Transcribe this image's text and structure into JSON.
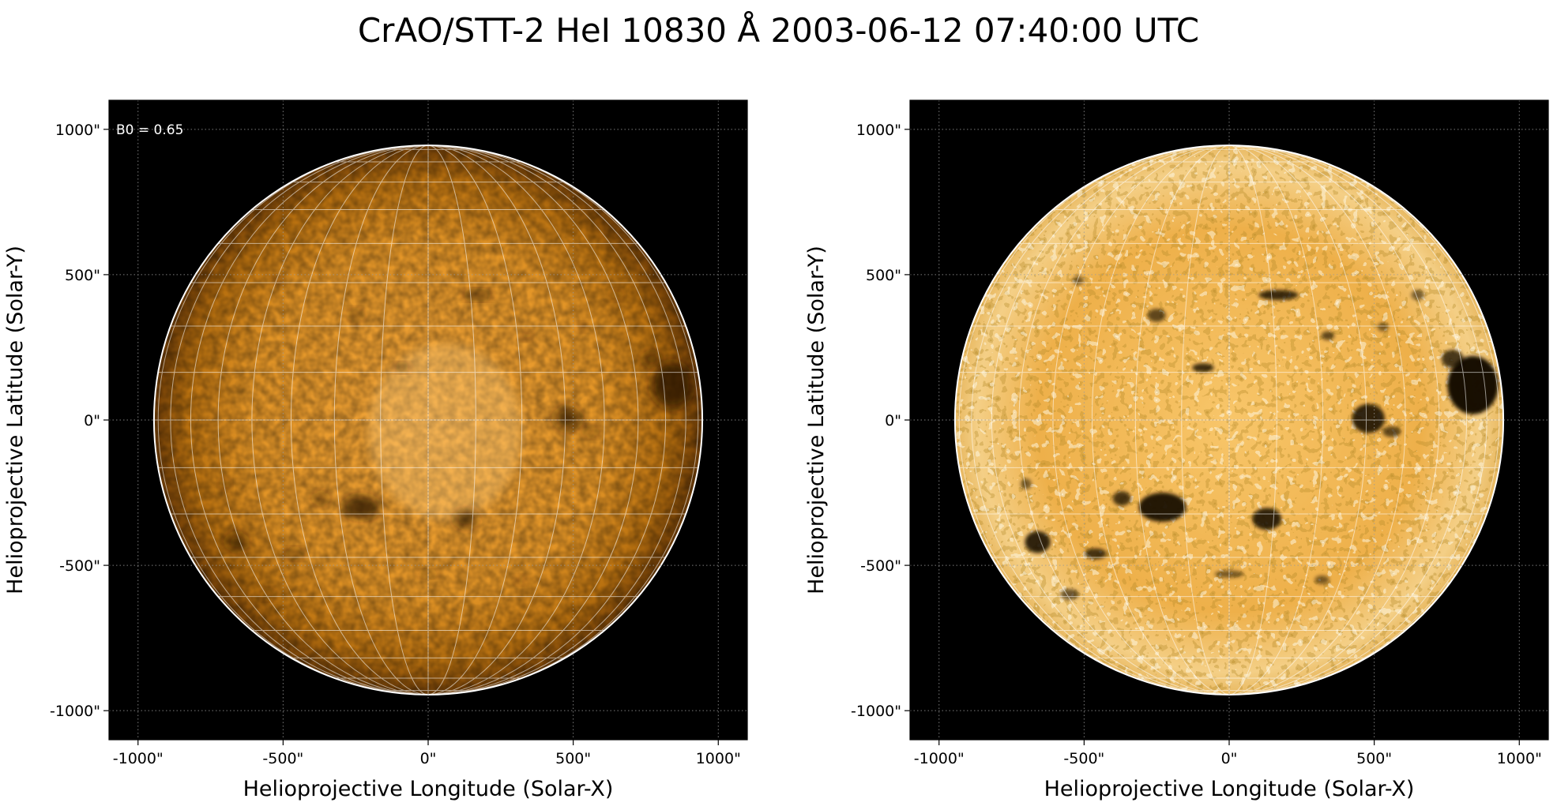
{
  "figure": {
    "title": "CrAO/STT-2 HeI 10830 Å 2003-06-12 07:40:00 UTC"
  },
  "panels": [
    {
      "id": "left",
      "annotation": "B0 = 0.65",
      "xlabel": "Helioprojective Longitude (Solar-X)",
      "ylabel": "Helioprojective Latitude (Solar-Y)",
      "xticks": [
        "-1000\"",
        "-500\"",
        "0\"",
        "500\"",
        "1000\""
      ],
      "yticks": [
        "1000\"",
        "500\"",
        "0\"",
        "-500\"",
        "-1000\""
      ],
      "style": "original"
    },
    {
      "id": "right",
      "annotation": "",
      "xlabel": "Helioprojective Longitude (Solar-X)",
      "ylabel": "Helioprojective Latitude (Solar-Y)",
      "xticks": [
        "-1000\"",
        "-500\"",
        "0\"",
        "500\"",
        "1000\""
      ],
      "yticks": [
        "1000\"",
        "500\"",
        "0\"",
        "-500\"",
        "-1000\""
      ],
      "style": "enhanced"
    }
  ],
  "axes": {
    "xlim": [
      -1100,
      1100
    ],
    "ylim": [
      -1100,
      1100
    ],
    "tick_values": [
      -1000,
      -500,
      0,
      500,
      1000
    ],
    "solar_radius_arcsec": 945,
    "grid_lines": "dotted",
    "heliographic_grid_step_deg": 10
  },
  "colors": {
    "background": "#000000",
    "disk_center": "#f2a53a",
    "disk_mid": "#d98a1e",
    "disk_limb": "#7a4508",
    "enhanced_center": "#f7c060",
    "enhanced_bright": "#fff0c8",
    "grid": "#ffffff"
  },
  "features": [
    {
      "x": -230,
      "y": -300,
      "rx": 65,
      "ry": 40,
      "dark": 0.85
    },
    {
      "x": -370,
      "y": -270,
      "rx": 25,
      "ry": 20,
      "dark": 0.7
    },
    {
      "x": 130,
      "y": -340,
      "rx": 40,
      "ry": 30,
      "dark": 0.8
    },
    {
      "x": 480,
      "y": 5,
      "rx": 45,
      "ry": 40,
      "dark": 0.8
    },
    {
      "x": 560,
      "y": -40,
      "rx": 25,
      "ry": 15,
      "dark": 0.6
    },
    {
      "x": 840,
      "y": 120,
      "rx": 70,
      "ry": 80,
      "dark": 0.9
    },
    {
      "x": 770,
      "y": 210,
      "rx": 30,
      "ry": 25,
      "dark": 0.7
    },
    {
      "x": -660,
      "y": -420,
      "rx": 35,
      "ry": 30,
      "dark": 0.8
    },
    {
      "x": -460,
      "y": -460,
      "rx": 30,
      "ry": 15,
      "dark": 0.7
    },
    {
      "x": -90,
      "y": 180,
      "rx": 30,
      "ry": 12,
      "dark": 0.75
    },
    {
      "x": 170,
      "y": 430,
      "rx": 55,
      "ry": 14,
      "dark": 0.75
    },
    {
      "x": -250,
      "y": 360,
      "rx": 25,
      "ry": 18,
      "dark": 0.6
    },
    {
      "x": -520,
      "y": 480,
      "rx": 15,
      "ry": 12,
      "dark": 0.5
    },
    {
      "x": 340,
      "y": 290,
      "rx": 18,
      "ry": 12,
      "dark": 0.6
    },
    {
      "x": 530,
      "y": 320,
      "rx": 15,
      "ry": 12,
      "dark": 0.5
    },
    {
      "x": 0,
      "y": -530,
      "rx": 40,
      "ry": 10,
      "dark": 0.5
    },
    {
      "x": -700,
      "y": -220,
      "rx": 15,
      "ry": 15,
      "dark": 0.5
    },
    {
      "x": 320,
      "y": -550,
      "rx": 20,
      "ry": 12,
      "dark": 0.5
    },
    {
      "x": -550,
      "y": -600,
      "rx": 25,
      "ry": 15,
      "dark": 0.55
    },
    {
      "x": 650,
      "y": 430,
      "rx": 18,
      "ry": 14,
      "dark": 0.5
    }
  ]
}
